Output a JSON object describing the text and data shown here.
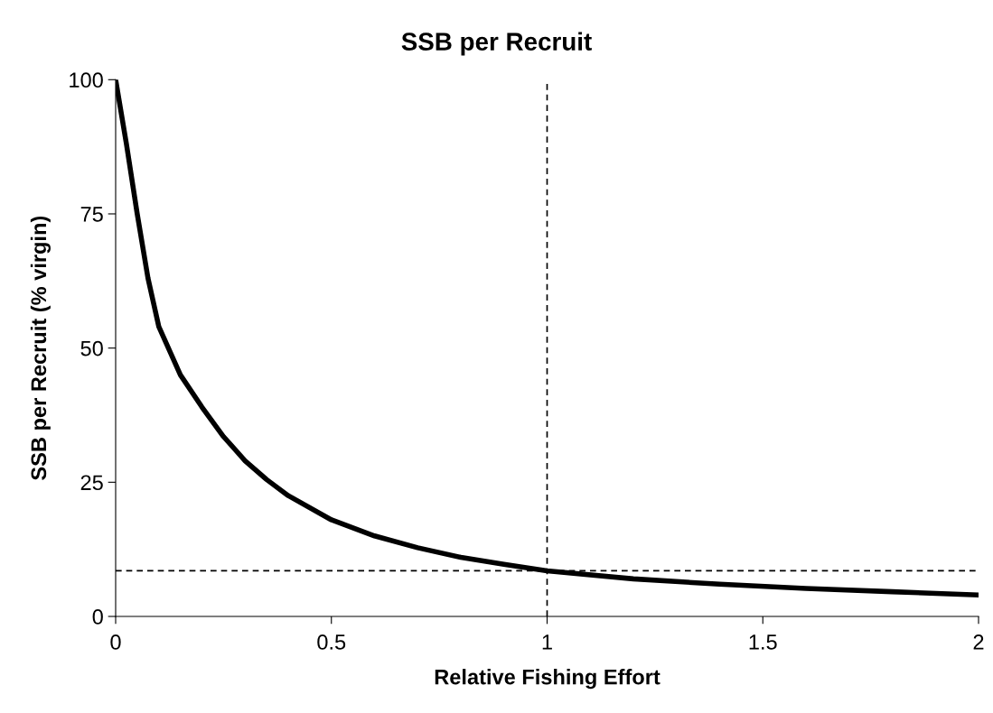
{
  "chart_data": {
    "type": "line",
    "title": "SSB per Recruit",
    "xlabel": "Relative Fishing Effort",
    "ylabel": "SSB per Recruit (% virgin)",
    "x": [
      0,
      0.025,
      0.05,
      0.075,
      0.1,
      0.15,
      0.2,
      0.25,
      0.3,
      0.35,
      0.4,
      0.5,
      0.6,
      0.7,
      0.8,
      0.9,
      1.0,
      1.2,
      1.4,
      1.6,
      1.8,
      2.0
    ],
    "series": [
      {
        "color": "#000000",
        "values": [
          100,
          88,
          75,
          63,
          54,
          45,
          39,
          33.5,
          29,
          25.5,
          22.5,
          18,
          15,
          12.8,
          11,
          9.7,
          8.5,
          7,
          6,
          5.2,
          4.6,
          4.0
        ]
      }
    ],
    "xlim": [
      0,
      2
    ],
    "xticks": [
      0,
      0.5,
      1,
      1.5,
      2
    ],
    "ylim": [
      0,
      100
    ],
    "yticks": [
      0,
      25,
      50,
      75,
      100
    ],
    "ref_lines": [
      {
        "axis": "x",
        "value": 1,
        "color": "#000000",
        "line_style": "dashed"
      },
      {
        "axis": "y",
        "value": 8.5,
        "color": "#000000",
        "line_style": "dashed"
      }
    ],
    "grid": false,
    "legend": false,
    "marker": "none",
    "line_style": "solid"
  }
}
